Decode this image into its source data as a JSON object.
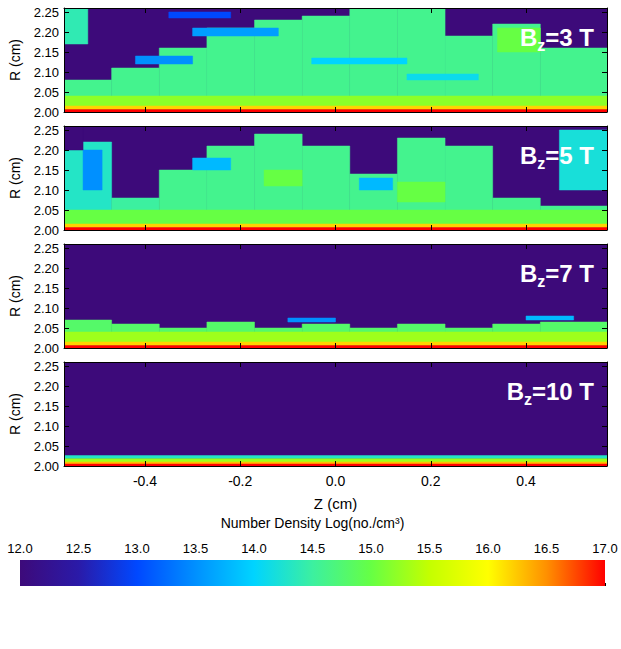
{
  "chart_data": [
    {
      "type": "heatmap",
      "title": "Bz=3 T",
      "y_label": "R (cm)",
      "tick_labels": "y",
      "xlim": [
        -0.57,
        0.57
      ],
      "xticks": [
        -0.4,
        -0.2,
        {
          "value": 0,
          "label": "0.0"
        },
        0.2,
        0.4
      ],
      "ylim": [
        2.0,
        2.26
      ],
      "yticks": [
        {
          "value": 2.0,
          "label": "2.00"
        },
        2.05,
        {
          "value": 2.1,
          "label": "2.10"
        },
        2.15,
        {
          "value": 2.2,
          "label": "2.20"
        },
        2.25
      ],
      "cells": [
        [
          -0.57,
          0.57,
          2.0,
          2.26,
          12.0
        ],
        [
          -0.57,
          -0.47,
          2.0,
          2.08,
          14.6
        ],
        [
          -0.47,
          -0.37,
          2.0,
          2.11,
          14.6
        ],
        [
          -0.37,
          -0.27,
          2.0,
          2.16,
          14.6
        ],
        [
          -0.27,
          -0.17,
          2.0,
          2.21,
          14.6
        ],
        [
          -0.17,
          -0.07,
          2.0,
          2.23,
          14.6
        ],
        [
          -0.07,
          0.03,
          2.0,
          2.24,
          14.6
        ],
        [
          0.03,
          0.13,
          2.0,
          2.26,
          14.6
        ],
        [
          0.13,
          0.23,
          2.0,
          2.26,
          14.6
        ],
        [
          0.23,
          0.33,
          2.0,
          2.19,
          14.6
        ],
        [
          0.33,
          0.43,
          2.0,
          2.22,
          14.6
        ],
        [
          0.43,
          0.57,
          2.0,
          2.16,
          14.6
        ],
        [
          -0.57,
          -0.52,
          2.17,
          2.26,
          14.4
        ],
        [
          0.34,
          0.43,
          2.15,
          2.21,
          15.0
        ],
        [
          -0.42,
          -0.3,
          2.12,
          2.14,
          13.5
        ],
        [
          -0.3,
          -0.12,
          2.19,
          2.21,
          13.6
        ],
        [
          -0.05,
          0.15,
          2.12,
          2.135,
          14.0
        ],
        [
          0.15,
          0.3,
          2.08,
          2.095,
          14.1
        ],
        [
          -0.35,
          -0.22,
          2.235,
          2.25,
          13.0
        ],
        [
          -0.57,
          0.57,
          2.015,
          2.04,
          15.2
        ],
        [
          -0.57,
          0.57,
          2.006,
          2.015,
          16.2
        ],
        [
          -0.57,
          0.57,
          2.0,
          2.006,
          17.0
        ]
      ]
    },
    {
      "type": "heatmap",
      "title": "Bz=5 T",
      "y_label": "R (cm)",
      "tick_labels": "y",
      "xlim": [
        -0.57,
        0.57
      ],
      "xticks": [
        -0.4,
        -0.2,
        {
          "value": 0,
          "label": "0.0"
        },
        0.2,
        0.4
      ],
      "ylim": [
        2.0,
        2.26
      ],
      "yticks": [
        {
          "value": 2.0,
          "label": "2.00"
        },
        2.05,
        {
          "value": 2.1,
          "label": "2.10"
        },
        2.15,
        {
          "value": 2.2,
          "label": "2.20"
        },
        2.25
      ],
      "cells": [
        [
          -0.57,
          0.57,
          2.0,
          2.26,
          12.0
        ],
        [
          -0.57,
          -0.47,
          2.0,
          2.22,
          14.3
        ],
        [
          -0.47,
          -0.37,
          2.0,
          2.08,
          14.5
        ],
        [
          -0.37,
          -0.27,
          2.0,
          2.15,
          14.6
        ],
        [
          -0.27,
          -0.17,
          2.0,
          2.21,
          14.6
        ],
        [
          -0.17,
          -0.07,
          2.0,
          2.24,
          14.6
        ],
        [
          -0.07,
          0.03,
          2.0,
          2.21,
          14.6
        ],
        [
          0.03,
          0.13,
          2.0,
          2.14,
          14.6
        ],
        [
          0.13,
          0.23,
          2.0,
          2.23,
          14.6
        ],
        [
          0.23,
          0.33,
          2.0,
          2.21,
          14.6
        ],
        [
          0.33,
          0.43,
          2.0,
          2.08,
          14.6
        ],
        [
          0.43,
          0.57,
          2.0,
          2.06,
          14.6
        ],
        [
          0.47,
          0.57,
          2.1,
          2.25,
          14.2
        ],
        [
          -0.15,
          -0.07,
          2.11,
          2.15,
          15.0
        ],
        [
          0.13,
          0.23,
          2.07,
          2.12,
          15.0
        ],
        [
          -0.53,
          -0.49,
          2.1,
          2.2,
          13.5
        ],
        [
          -0.57,
          -0.53,
          2.2,
          2.26,
          12.0
        ],
        [
          -0.3,
          -0.22,
          2.15,
          2.18,
          13.8
        ],
        [
          0.05,
          0.12,
          2.1,
          2.13,
          13.8
        ],
        [
          -0.57,
          0.57,
          2.015,
          2.05,
          15.0
        ],
        [
          -0.57,
          0.57,
          2.006,
          2.015,
          16.2
        ],
        [
          -0.57,
          0.57,
          2.0,
          2.006,
          17.0
        ]
      ]
    },
    {
      "type": "heatmap",
      "title": "Bz=7 T",
      "y_label": "R (cm)",
      "tick_labels": "y",
      "xlim": [
        -0.57,
        0.57
      ],
      "xticks": [
        -0.4,
        -0.2,
        {
          "value": 0,
          "label": "0.0"
        },
        0.2,
        0.4
      ],
      "ylim": [
        2.0,
        2.26
      ],
      "yticks": [
        {
          "value": 2.0,
          "label": "2.00"
        },
        2.05,
        {
          "value": 2.1,
          "label": "2.10"
        },
        2.15,
        {
          "value": 2.2,
          "label": "2.20"
        },
        2.25
      ],
      "cells": [
        [
          -0.57,
          0.57,
          2.0,
          2.26,
          12.0
        ],
        [
          -0.57,
          -0.47,
          2.0,
          2.07,
          14.8
        ],
        [
          -0.47,
          -0.37,
          2.0,
          2.06,
          14.8
        ],
        [
          -0.37,
          -0.27,
          2.0,
          2.05,
          14.8
        ],
        [
          -0.27,
          -0.17,
          2.0,
          2.065,
          14.8
        ],
        [
          -0.17,
          -0.07,
          2.0,
          2.05,
          14.8
        ],
        [
          -0.07,
          0.03,
          2.0,
          2.06,
          14.8
        ],
        [
          0.03,
          0.13,
          2.0,
          2.05,
          14.8
        ],
        [
          0.13,
          0.23,
          2.0,
          2.06,
          14.8
        ],
        [
          0.23,
          0.33,
          2.0,
          2.05,
          14.8
        ],
        [
          0.33,
          0.43,
          2.0,
          2.06,
          14.8
        ],
        [
          0.43,
          0.57,
          2.0,
          2.065,
          14.8
        ],
        [
          -0.1,
          0.0,
          2.065,
          2.075,
          13.5
        ],
        [
          0.4,
          0.5,
          2.07,
          2.08,
          13.8
        ],
        [
          -0.57,
          0.57,
          2.015,
          2.04,
          15.3
        ],
        [
          -0.57,
          0.57,
          2.006,
          2.015,
          16.2
        ],
        [
          -0.57,
          0.57,
          2.0,
          2.006,
          17.0
        ]
      ]
    },
    {
      "type": "heatmap",
      "title": "Bz=10 T",
      "x_label": "Z (cm)",
      "y_label": "R (cm)",
      "xlim": [
        -0.57,
        0.57
      ],
      "xticks": [
        -0.4,
        -0.2,
        {
          "value": 0,
          "label": "0.0"
        },
        0.2,
        0.4
      ],
      "ylim": [
        2.0,
        2.26
      ],
      "yticks": [
        {
          "value": 2.0,
          "label": "2.00"
        },
        2.05,
        {
          "value": 2.1,
          "label": "2.10"
        },
        2.15,
        {
          "value": 2.2,
          "label": "2.20"
        },
        2.25
      ],
      "cells": [
        [
          -0.57,
          0.57,
          2.0,
          2.26,
          12.0
        ],
        [
          -0.57,
          0.57,
          2.018,
          2.026,
          14.3
        ],
        [
          -0.57,
          0.57,
          2.01,
          2.018,
          15.3
        ],
        [
          -0.57,
          0.57,
          2.005,
          2.01,
          16.3
        ],
        [
          -0.57,
          0.57,
          2.0,
          2.005,
          17.0
        ]
      ]
    },
    {
      "type": "colorbar",
      "title": "Number Density Log(no./cm³)",
      "xlim": [
        12,
        17
      ],
      "xticks": [
        {
          "value": 12,
          "label": "12.0"
        },
        12.5,
        {
          "value": 13,
          "label": "13.0"
        },
        13.5,
        {
          "value": 14,
          "label": "14.0"
        },
        14.5,
        {
          "value": 15,
          "label": "15.0"
        },
        15.5,
        {
          "value": 16,
          "label": "16.0"
        },
        16.5,
        {
          "value": 17,
          "label": "17.0"
        }
      ]
    }
  ]
}
